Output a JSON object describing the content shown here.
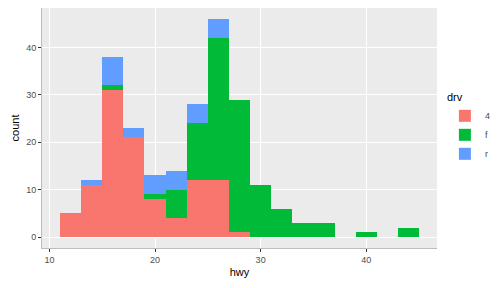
{
  "chart_data": {
    "type": "histogram",
    "x_label": "hwy",
    "y_label": "count",
    "legend_title": "drv",
    "bins": [
      11,
      13,
      15,
      17,
      19,
      21,
      23,
      25,
      27,
      29,
      31,
      33,
      35,
      37,
      39,
      41,
      43,
      45
    ],
    "series": [
      {
        "name": "4",
        "color": "#F8766D",
        "values": [
          5,
          11,
          31,
          21,
          8,
          4,
          12,
          12,
          1,
          0,
          0,
          0,
          0,
          0,
          0,
          0,
          0
        ]
      },
      {
        "name": "f",
        "color": "#00BA38",
        "values": [
          0,
          0,
          1,
          0,
          1,
          6,
          12,
          30,
          28,
          11,
          6,
          3,
          3,
          0,
          1,
          0,
          2
        ]
      },
      {
        "name": "r",
        "color": "#619CFF",
        "values": [
          0,
          1,
          6,
          2,
          4,
          4,
          4,
          4,
          0,
          0,
          0,
          0,
          0,
          0,
          0,
          0,
          0
        ]
      }
    ],
    "stacked": true,
    "xlim": [
      9.3,
      46.7
    ],
    "ylim": [
      -2.3,
      48.3
    ],
    "xticks": [
      10,
      20,
      30,
      40
    ],
    "yticks": [
      0,
      10,
      20,
      30,
      40
    ],
    "grid": true,
    "legend": "right"
  }
}
